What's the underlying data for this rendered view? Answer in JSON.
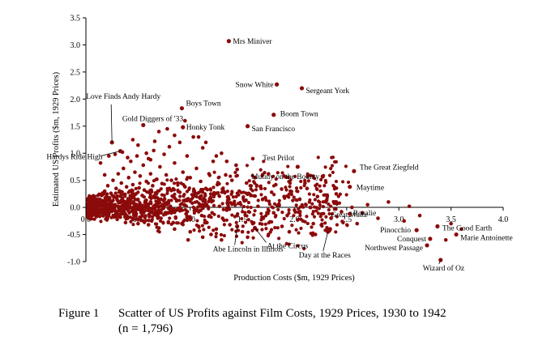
{
  "chart_data": {
    "type": "scatter",
    "xlabel": "Production Costs ($m, 1929 Prices)",
    "ylabel": "Estimated US Profits ($m, 1929 Prices)",
    "xlim": [
      0,
      4.0
    ],
    "ylim": [
      -1.0,
      3.5
    ],
    "x_ticks": [
      "0.0",
      "0.5",
      "1.0",
      "1.5",
      "2.0",
      "2.5",
      "3.0",
      "3.5",
      "4.0"
    ],
    "y_ticks": [
      "-1.0",
      "-0.5",
      "0.0",
      "0.5",
      "1.0",
      "1.5",
      "2.0",
      "2.5",
      "3.0",
      "3.5"
    ],
    "grid": false,
    "legend": "none",
    "point_color": "#8b0a0a",
    "n": 1796,
    "labeled_points": [
      {
        "name": "Mrs Miniver",
        "x": 1.37,
        "y": 3.07
      },
      {
        "name": "Snow White",
        "x": 1.83,
        "y": 2.27
      },
      {
        "name": "Sergeant York",
        "x": 2.07,
        "y": 2.2
      },
      {
        "name": "Love Finds Andy Hardy",
        "x": 0.25,
        "y": 1.2
      },
      {
        "name": "Boys Town",
        "x": 0.92,
        "y": 1.83
      },
      {
        "name": "Boom Town",
        "x": 1.8,
        "y": 1.71
      },
      {
        "name": "Gold Diggers of '33",
        "x": 0.55,
        "y": 1.52
      },
      {
        "name": "Honky Tonk",
        "x": 0.93,
        "y": 1.48
      },
      {
        "name": "San Francisco",
        "x": 1.55,
        "y": 1.5
      },
      {
        "name": "Hardys Ride High",
        "x": 0.33,
        "y": 1.04
      },
      {
        "name": "Test Prilot",
        "x": 2.03,
        "y": 0.75
      },
      {
        "name": "The Great Ziegfeld",
        "x": 2.57,
        "y": 0.67
      },
      {
        "name": "Mutiny on the Bounty",
        "x": 2.27,
        "y": 0.57
      },
      {
        "name": "Maytime",
        "x": 2.53,
        "y": 0.38
      },
      {
        "name": "Rosalie",
        "x": 2.53,
        "y": -0.12
      },
      {
        "name": "Great Waltz",
        "x": 2.34,
        "y": -0.4
      },
      {
        "name": "Pinocchio",
        "x": 3.17,
        "y": -0.42
      },
      {
        "name": "The Good Earth",
        "x": 3.37,
        "y": -0.35
      },
      {
        "name": "Conquest",
        "x": 3.3,
        "y": -0.58
      },
      {
        "name": "Marie Antoinette",
        "x": 3.55,
        "y": -0.5
      },
      {
        "name": "Northwest Passage",
        "x": 3.27,
        "y": -0.7
      },
      {
        "name": "Wizard of Oz",
        "x": 3.4,
        "y": -0.97
      },
      {
        "name": "At the Circus",
        "x": 1.62,
        "y": -0.38
      },
      {
        "name": "Abe Lincoln in Illinois",
        "x": 1.45,
        "y": -0.35
      },
      {
        "name": "Day at the Races",
        "x": 2.32,
        "y": -0.45
      }
    ],
    "background_points": [
      [
        0.05,
        0.02
      ],
      [
        0.06,
        0.05
      ],
      [
        0.07,
        -0.02
      ],
      [
        0.08,
        0.08
      ],
      [
        0.09,
        0.03
      ],
      [
        0.1,
        -0.04
      ],
      [
        0.1,
        0.12
      ],
      [
        0.11,
        0.06
      ],
      [
        0.12,
        0.01
      ],
      [
        0.12,
        -0.08
      ],
      [
        0.13,
        0.15
      ],
      [
        0.14,
        0.04
      ],
      [
        0.15,
        -0.05
      ],
      [
        0.15,
        0.22
      ],
      [
        0.16,
        0.1
      ],
      [
        0.17,
        -0.1
      ],
      [
        0.18,
        0.02
      ],
      [
        0.18,
        0.3
      ],
      [
        0.19,
        0.14
      ],
      [
        0.2,
        -0.06
      ],
      [
        0.2,
        0.07
      ],
      [
        0.21,
        0.4
      ],
      [
        0.22,
        -0.12
      ],
      [
        0.22,
        0.18
      ],
      [
        0.23,
        0.03
      ],
      [
        0.24,
        0.26
      ],
      [
        0.25,
        -0.03
      ],
      [
        0.25,
        0.11
      ],
      [
        0.26,
        0.5
      ],
      [
        0.27,
        -0.15
      ],
      [
        0.27,
        0.2
      ],
      [
        0.28,
        0.05
      ],
      [
        0.29,
        0.35
      ],
      [
        0.3,
        -0.08
      ],
      [
        0.3,
        0.14
      ],
      [
        0.31,
        0.62
      ],
      [
        0.31,
        0.02
      ],
      [
        0.32,
        0.28
      ],
      [
        0.33,
        -0.18
      ],
      [
        0.33,
        0.09
      ],
      [
        0.34,
        0.45
      ],
      [
        0.35,
        0.17
      ],
      [
        0.35,
        -0.04
      ],
      [
        0.36,
        0.72
      ],
      [
        0.37,
        0.24
      ],
      [
        0.37,
        -0.1
      ],
      [
        0.38,
        0.06
      ],
      [
        0.39,
        0.38
      ],
      [
        0.4,
        -0.2
      ],
      [
        0.4,
        0.12
      ],
      [
        0.41,
        0.55
      ],
      [
        0.42,
        0.02
      ],
      [
        0.42,
        0.3
      ],
      [
        0.43,
        0.85
      ],
      [
        0.44,
        -0.07
      ],
      [
        0.44,
        0.19
      ],
      [
        0.45,
        0.42
      ],
      [
        0.46,
        -0.14
      ],
      [
        0.46,
        0.08
      ],
      [
        0.47,
        0.65
      ],
      [
        0.48,
        0.25
      ],
      [
        0.48,
        -0.03
      ],
      [
        0.49,
        0.95
      ],
      [
        0.5,
        0.14
      ],
      [
        0.5,
        -0.22
      ],
      [
        0.51,
        0.36
      ],
      [
        0.52,
        0.05
      ],
      [
        0.52,
        0.58
      ],
      [
        0.53,
        -0.1
      ],
      [
        0.54,
        0.22
      ],
      [
        0.55,
        0.78
      ],
      [
        0.55,
        0.01
      ],
      [
        0.56,
        0.32
      ],
      [
        0.57,
        -0.16
      ],
      [
        0.57,
        0.12
      ],
      [
        0.58,
        0.48
      ],
      [
        0.59,
        0.04
      ],
      [
        0.6,
        0.9
      ],
      [
        0.6,
        -0.06
      ],
      [
        0.61,
        0.27
      ],
      [
        0.62,
        0.62
      ],
      [
        0.62,
        0.1
      ],
      [
        0.63,
        -0.25
      ],
      [
        0.64,
        0.4
      ],
      [
        0.65,
        0.02
      ],
      [
        0.65,
        1.05
      ],
      [
        0.66,
        0.18
      ],
      [
        0.67,
        -0.12
      ],
      [
        0.68,
        0.52
      ],
      [
        0.68,
        0.07
      ],
      [
        0.69,
        0.3
      ],
      [
        0.7,
        -0.05
      ],
      [
        0.71,
        0.75
      ],
      [
        0.72,
        0.15
      ],
      [
        0.72,
        -0.2
      ],
      [
        0.73,
        0.44
      ],
      [
        0.74,
        0.03
      ],
      [
        0.75,
        0.98
      ],
      [
        0.75,
        0.22
      ],
      [
        0.76,
        -0.1
      ],
      [
        0.77,
        0.6
      ],
      [
        0.78,
        0.09
      ],
      [
        0.79,
        -0.28
      ],
      [
        0.8,
        0.35
      ],
      [
        0.8,
        1.12
      ],
      [
        0.81,
        0.02
      ],
      [
        0.82,
        0.5
      ],
      [
        0.83,
        -0.08
      ],
      [
        0.84,
        0.2
      ],
      [
        0.85,
        0.82
      ],
      [
        0.86,
        -0.18
      ],
      [
        0.87,
        0.12
      ],
      [
        0.88,
        0.45
      ],
      [
        0.89,
        -0.02
      ],
      [
        0.9,
        1.2
      ],
      [
        0.9,
        0.28
      ],
      [
        0.92,
        -0.3
      ],
      [
        0.93,
        0.65
      ],
      [
        0.94,
        0.05
      ],
      [
        0.95,
        0.38
      ],
      [
        0.96,
        -0.12
      ],
      [
        0.97,
        0.95
      ],
      [
        0.98,
        0.16
      ],
      [
        1.0,
        -0.22
      ],
      [
        1.0,
        0.55
      ],
      [
        1.02,
        0.08
      ],
      [
        1.03,
        1.3
      ],
      [
        1.04,
        0.3
      ],
      [
        1.05,
        -0.06
      ],
      [
        1.06,
        0.72
      ],
      [
        1.08,
        -0.35
      ],
      [
        1.09,
        0.18
      ],
      [
        1.1,
        0.48
      ],
      [
        1.11,
        -0.15
      ],
      [
        1.12,
        1.1
      ],
      [
        1.14,
        0.04
      ],
      [
        1.15,
        0.35
      ],
      [
        1.16,
        -0.28
      ],
      [
        1.18,
        0.62
      ],
      [
        1.2,
        0.12
      ],
      [
        1.21,
        -0.1
      ],
      [
        1.22,
        0.85
      ],
      [
        1.24,
        0.25
      ],
      [
        1.25,
        -0.4
      ],
      [
        1.26,
        0.42
      ],
      [
        1.28,
        0.02
      ],
      [
        1.3,
        1.0
      ],
      [
        1.31,
        -0.2
      ],
      [
        1.32,
        0.3
      ],
      [
        1.34,
        0.6
      ],
      [
        1.35,
        -0.05
      ],
      [
        1.37,
        0.15
      ],
      [
        1.38,
        -0.32
      ],
      [
        1.4,
        0.5
      ],
      [
        1.42,
        0.08
      ],
      [
        1.44,
        0.78
      ],
      [
        1.45,
        -0.15
      ],
      [
        1.47,
        0.3
      ],
      [
        1.5,
        -0.45
      ],
      [
        1.52,
        0.12
      ],
      [
        1.54,
        0.45
      ],
      [
        1.56,
        -0.08
      ],
      [
        1.58,
        0.22
      ],
      [
        1.6,
        -0.3
      ],
      [
        1.62,
        0.55
      ],
      [
        1.65,
        0.02
      ],
      [
        1.68,
        0.35
      ],
      [
        1.7,
        -0.2
      ],
      [
        1.72,
        0.18
      ],
      [
        1.75,
        -0.5
      ],
      [
        1.78,
        0.28
      ],
      [
        1.8,
        -0.1
      ],
      [
        1.82,
        0.42
      ],
      [
        1.85,
        0.05
      ],
      [
        1.88,
        -0.35
      ],
      [
        1.9,
        0.2
      ],
      [
        1.93,
        -0.15
      ],
      [
        1.96,
        0.3
      ],
      [
        2.0,
        -0.05
      ],
      [
        2.05,
        0.15
      ],
      [
        2.08,
        -0.25
      ],
      [
        2.12,
        0.35
      ],
      [
        2.15,
        0.0
      ],
      [
        2.18,
        -0.3
      ],
      [
        2.22,
        0.2
      ],
      [
        2.26,
        -0.12
      ],
      [
        2.3,
        0.1
      ],
      [
        2.35,
        -0.2
      ],
      [
        2.4,
        0.25
      ],
      [
        2.45,
        -0.08
      ],
      [
        2.6,
        -0.3
      ],
      [
        2.7,
        0.05
      ],
      [
        2.8,
        -0.2
      ],
      [
        2.9,
        0.1
      ],
      [
        3.05,
        -0.25
      ],
      [
        3.1,
        0.02
      ],
      [
        3.2,
        -0.15
      ],
      [
        3.45,
        -0.6
      ],
      [
        3.5,
        -0.3
      ],
      [
        3.6,
        -0.4
      ],
      [
        0.14,
        0.82
      ],
      [
        0.22,
        0.95
      ],
      [
        0.28,
        0.98
      ],
      [
        0.18,
        0.6
      ],
      [
        0.35,
        1.02
      ],
      [
        0.4,
        0.92
      ],
      [
        0.5,
        1.15
      ],
      [
        0.58,
        1.0
      ],
      [
        0.45,
        1.25
      ],
      [
        0.7,
        1.4
      ],
      [
        0.66,
        1.22
      ],
      [
        0.78,
        1.45
      ],
      [
        0.62,
        0.88
      ],
      [
        0.85,
        1.33
      ],
      [
        0.95,
        1.6
      ],
      [
        1.08,
        1.3
      ],
      [
        1.15,
        1.2
      ],
      [
        1.25,
        0.95
      ],
      [
        1.35,
        0.85
      ],
      [
        1.45,
        0.7
      ],
      [
        1.6,
        0.9
      ],
      [
        1.75,
        0.62
      ],
      [
        1.9,
        0.58
      ],
      [
        2.1,
        0.45
      ],
      [
        2.25,
        0.3
      ],
      [
        2.4,
        0.1
      ],
      [
        2.55,
        0.0
      ],
      [
        2.65,
        -0.1
      ],
      [
        1.2,
        -0.5
      ],
      [
        1.0,
        -0.45
      ],
      [
        0.85,
        -0.4
      ],
      [
        0.7,
        -0.38
      ],
      [
        0.6,
        -0.32
      ],
      [
        0.5,
        -0.3
      ],
      [
        0.38,
        -0.28
      ],
      [
        0.3,
        -0.22
      ],
      [
        0.2,
        -0.18
      ],
      [
        0.12,
        -0.14
      ],
      [
        0.08,
        -0.08
      ],
      [
        0.04,
        -0.03
      ],
      [
        1.3,
        -0.6
      ],
      [
        1.55,
        -0.55
      ],
      [
        1.95,
        -0.45
      ],
      [
        2.2,
        -0.5
      ],
      [
        0.98,
        -0.6
      ],
      [
        1.12,
        -0.55
      ]
    ]
  },
  "caption": {
    "figure_label": "Figure 1",
    "title": "Scatter of US Profits against Film Costs, 1929 Prices, 1930 to 1942",
    "note": "(n = 1,796)"
  }
}
